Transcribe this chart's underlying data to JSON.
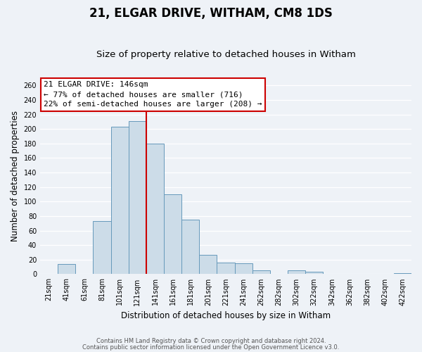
{
  "title": "21, ELGAR DRIVE, WITHAM, CM8 1DS",
  "subtitle": "Size of property relative to detached houses in Witham",
  "xlabel": "Distribution of detached houses by size in Witham",
  "ylabel": "Number of detached properties",
  "bin_labels": [
    "21sqm",
    "41sqm",
    "61sqm",
    "81sqm",
    "101sqm",
    "121sqm",
    "141sqm",
    "161sqm",
    "181sqm",
    "201sqm",
    "221sqm",
    "241sqm",
    "262sqm",
    "282sqm",
    "302sqm",
    "322sqm",
    "342sqm",
    "362sqm",
    "382sqm",
    "402sqm",
    "422sqm"
  ],
  "bin_values": [
    0,
    14,
    0,
    73,
    203,
    211,
    180,
    110,
    75,
    27,
    16,
    15,
    5,
    0,
    5,
    3,
    0,
    0,
    0,
    0,
    1
  ],
  "bar_color": "#ccdce8",
  "bar_edge_color": "#6699bb",
  "ylim": [
    0,
    270
  ],
  "yticks": [
    0,
    20,
    40,
    60,
    80,
    100,
    120,
    140,
    160,
    180,
    200,
    220,
    240,
    260
  ],
  "vline_x": 6.0,
  "vline_color": "#cc0000",
  "annotation_title": "21 ELGAR DRIVE: 146sqm",
  "annotation_line1": "← 77% of detached houses are smaller (716)",
  "annotation_line2": "22% of semi-detached houses are larger (208) →",
  "annotation_box_color": "#cc0000",
  "footer1": "Contains HM Land Registry data © Crown copyright and database right 2024.",
  "footer2": "Contains public sector information licensed under the Open Government Licence v3.0.",
  "background_color": "#eef2f7",
  "grid_color": "#ffffff",
  "title_fontsize": 12,
  "subtitle_fontsize": 9.5,
  "tick_fontsize": 7,
  "ylabel_fontsize": 8.5,
  "xlabel_fontsize": 8.5,
  "annot_fontsize": 8
}
